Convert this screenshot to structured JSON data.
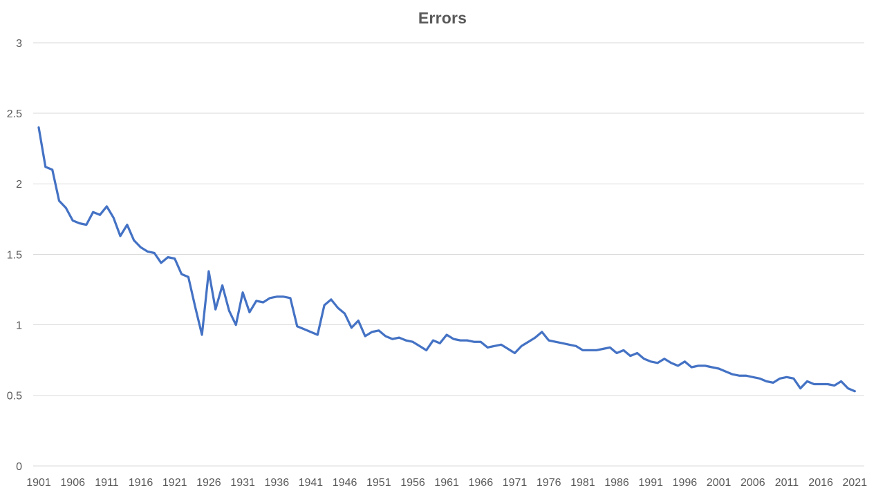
{
  "chart_data": {
    "type": "line",
    "title": "Errors",
    "series_name": "Errors",
    "xlabel": "",
    "ylabel": "",
    "grid": "horizontal",
    "legend": "none",
    "ylim": [
      0,
      3
    ],
    "y_ticks": [
      0,
      0.5,
      1,
      1.5,
      2,
      2.5,
      3
    ],
    "x_tick_labels": [
      "1901",
      "1906",
      "1911",
      "1916",
      "1921",
      "1926",
      "1931",
      "1936",
      "1941",
      "1946",
      "1951",
      "1956",
      "1961",
      "1966",
      "1971",
      "1976",
      "1981",
      "1986",
      "1991",
      "1996",
      "2001",
      "2006",
      "2011",
      "2016",
      "2021"
    ],
    "x": [
      1901,
      1902,
      1903,
      1904,
      1905,
      1906,
      1907,
      1908,
      1909,
      1910,
      1911,
      1912,
      1913,
      1914,
      1915,
      1916,
      1917,
      1918,
      1919,
      1920,
      1921,
      1922,
      1923,
      1924,
      1925,
      1926,
      1927,
      1928,
      1929,
      1930,
      1931,
      1932,
      1933,
      1934,
      1935,
      1936,
      1937,
      1938,
      1939,
      1940,
      1941,
      1942,
      1943,
      1944,
      1945,
      1946,
      1947,
      1948,
      1949,
      1950,
      1951,
      1952,
      1953,
      1954,
      1955,
      1956,
      1957,
      1958,
      1959,
      1960,
      1961,
      1962,
      1963,
      1964,
      1965,
      1966,
      1967,
      1968,
      1969,
      1970,
      1971,
      1972,
      1973,
      1974,
      1975,
      1976,
      1977,
      1978,
      1979,
      1980,
      1981,
      1982,
      1983,
      1984,
      1985,
      1986,
      1987,
      1988,
      1989,
      1990,
      1991,
      1992,
      1993,
      1994,
      1995,
      1996,
      1997,
      1998,
      1999,
      2000,
      2001,
      2002,
      2003,
      2004,
      2005,
      2006,
      2007,
      2008,
      2009,
      2010,
      2011,
      2012,
      2013,
      2014,
      2015,
      2016,
      2017,
      2018,
      2019,
      2020,
      2021
    ],
    "values": [
      2.4,
      2.12,
      2.1,
      1.88,
      1.83,
      1.74,
      1.72,
      1.71,
      1.8,
      1.78,
      1.84,
      1.76,
      1.63,
      1.71,
      1.6,
      1.55,
      1.52,
      1.51,
      1.44,
      1.48,
      1.47,
      1.36,
      1.34,
      1.13,
      0.93,
      1.38,
      1.11,
      1.28,
      1.1,
      1.0,
      1.23,
      1.09,
      1.17,
      1.16,
      1.19,
      1.2,
      1.2,
      1.19,
      0.99,
      0.97,
      0.95,
      0.93,
      1.14,
      1.18,
      1.12,
      1.08,
      0.98,
      1.03,
      0.92,
      0.95,
      0.96,
      0.92,
      0.9,
      0.91,
      0.89,
      0.88,
      0.85,
      0.82,
      0.89,
      0.87,
      0.93,
      0.9,
      0.89,
      0.89,
      0.88,
      0.88,
      0.84,
      0.85,
      0.86,
      0.83,
      0.8,
      0.85,
      0.88,
      0.91,
      0.95,
      0.89,
      0.88,
      0.87,
      0.86,
      0.85,
      0.82,
      0.82,
      0.82,
      0.83,
      0.84,
      0.8,
      0.82,
      0.78,
      0.8,
      0.76,
      0.74,
      0.73,
      0.76,
      0.73,
      0.71,
      0.74,
      0.7,
      0.71,
      0.71,
      0.7,
      0.69,
      0.67,
      0.65,
      0.64,
      0.64,
      0.63,
      0.62,
      0.6,
      0.59,
      0.62,
      0.63,
      0.62,
      0.55,
      0.6,
      0.58,
      0.58,
      0.58,
      0.57,
      0.6,
      0.55,
      0.53
    ],
    "line_color": "#4472C4",
    "title_color": "#595959",
    "axis_label_color": "#595959",
    "gridline_color": "#D9D9D9",
    "background_color": "#FFFFFF"
  }
}
